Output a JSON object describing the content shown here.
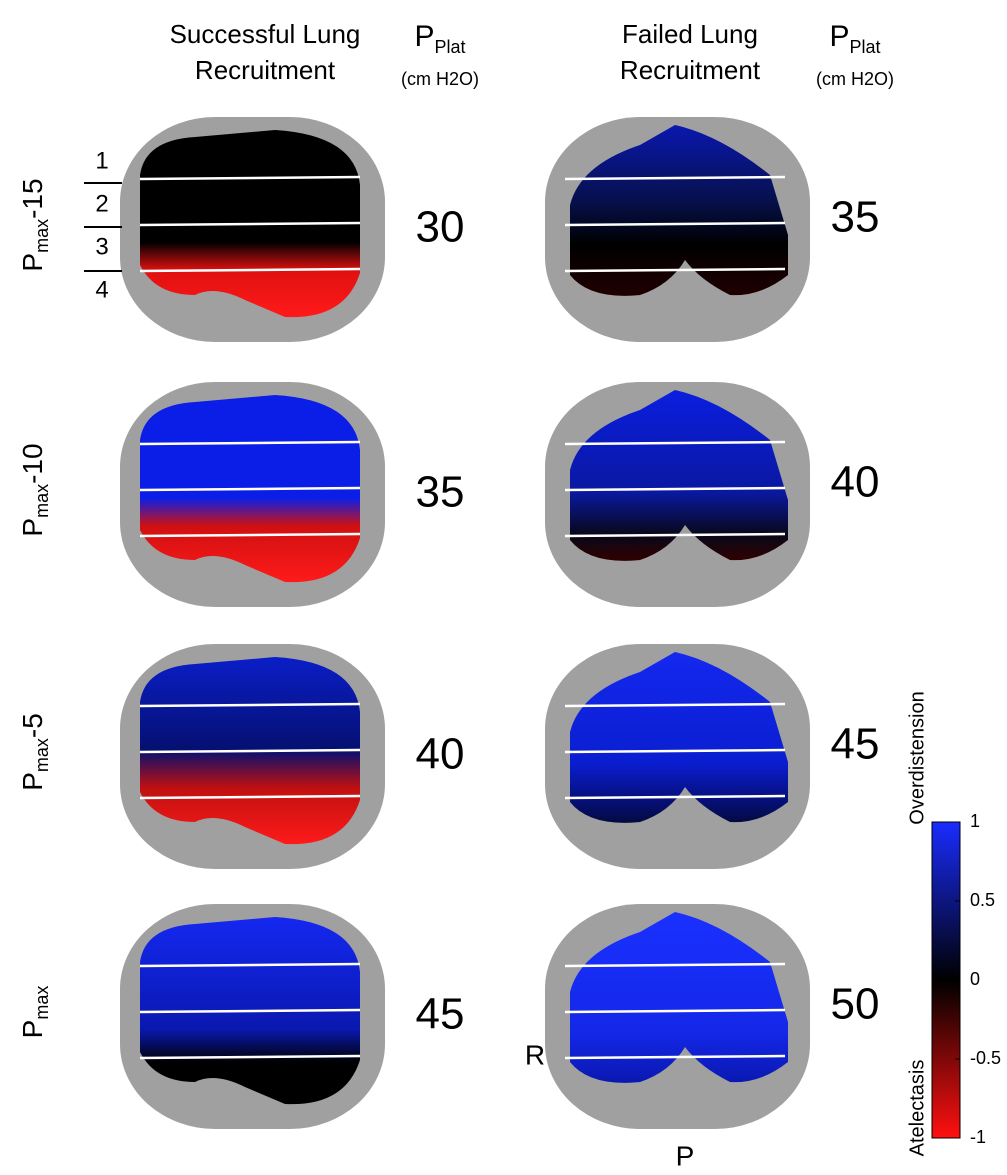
{
  "columns": [
    {
      "title_lines": [
        "Successful Lung",
        "Recruitment"
      ],
      "pressure_label": {
        "main": "P",
        "sub": "Plat",
        "unit": "(cm H2O)"
      },
      "pressures": [
        30,
        35,
        40,
        45
      ]
    },
    {
      "title_lines": [
        "Failed Lung",
        "Recruitment"
      ],
      "pressure_label": {
        "main": "P",
        "sub": "Plat",
        "unit": "(cm H2O)"
      },
      "pressures": [
        35,
        40,
        45,
        50
      ]
    }
  ],
  "rows": [
    {
      "main": "P",
      "sub": "max",
      "suffix": "-15"
    },
    {
      "main": "P",
      "sub": "max",
      "suffix": "-10"
    },
    {
      "main": "P",
      "sub": "max",
      "suffix": "-5"
    },
    {
      "main": "P",
      "sub": "max"
    }
  ],
  "zones": [
    "1",
    "2",
    "3",
    "4"
  ],
  "orientation": {
    "right": "R",
    "posterior": "P"
  },
  "colorbar": {
    "ticks": [
      1,
      0.5,
      0,
      -0.5,
      -1
    ],
    "top_label": "Overdistension",
    "bottom_label": "Atelectasis"
  }
}
